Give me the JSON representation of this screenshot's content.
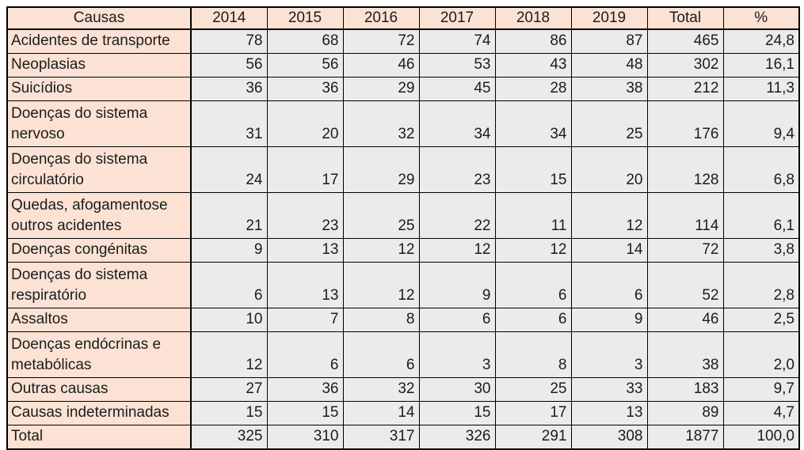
{
  "table": {
    "columns": [
      "Causas",
      "2014",
      "2015",
      "2016",
      "2017",
      "2018",
      "2019",
      "Total",
      "%"
    ],
    "rows": [
      {
        "label": "Acidentes de transporte",
        "values": [
          "78",
          "68",
          "72",
          "74",
          "86",
          "87",
          "465",
          "24,8"
        ]
      },
      {
        "label": "Neoplasias",
        "values": [
          "56",
          "56",
          "46",
          "53",
          "43",
          "48",
          "302",
          "16,1"
        ]
      },
      {
        "label": "Suicídios",
        "values": [
          "36",
          "36",
          "29",
          "45",
          "28",
          "38",
          "212",
          "11,3"
        ]
      },
      {
        "label": "Doenças do sistema\nnervoso",
        "values": [
          "31",
          "20",
          "32",
          "34",
          "34",
          "25",
          "176",
          "9,4"
        ]
      },
      {
        "label": "Doenças do sistema\ncirculatório",
        "values": [
          "24",
          "17",
          "29",
          "23",
          "15",
          "20",
          "128",
          "6,8"
        ]
      },
      {
        "label": "Quedas, afogamentose\noutros acidentes",
        "values": [
          "21",
          "23",
          "25",
          "22",
          "11",
          "12",
          "114",
          "6,1"
        ]
      },
      {
        "label": "Doenças congénitas",
        "values": [
          "9",
          "13",
          "12",
          "12",
          "12",
          "14",
          "72",
          "3,8"
        ]
      },
      {
        "label": "Doenças do sistema\nrespiratório",
        "values": [
          "6",
          "13",
          "12",
          "9",
          "6",
          "6",
          "52",
          "2,8"
        ]
      },
      {
        "label": "Assaltos",
        "values": [
          "10",
          "7",
          "8",
          "6",
          "6",
          "9",
          "46",
          "2,5"
        ]
      },
      {
        "label": "Doenças endócrinas e\nmetabólicas",
        "values": [
          "12",
          "6",
          "6",
          "3",
          "8",
          "3",
          "38",
          "2,0"
        ]
      },
      {
        "label": "Outras causas",
        "values": [
          "27",
          "36",
          "32",
          "30",
          "25",
          "33",
          "183",
          "9,7"
        ]
      },
      {
        "label": "Causas indeterminadas",
        "values": [
          "15",
          "15",
          "14",
          "15",
          "17",
          "13",
          "89",
          "4,7"
        ]
      },
      {
        "label": "Total",
        "values": [
          "325",
          "310",
          "317",
          "326",
          "291",
          "308",
          "1877",
          "100,0"
        ]
      }
    ],
    "colors": {
      "header_bg": "#fbe2d5",
      "label_bg": "#fbe2d5",
      "cell_bg": "#ecebe9",
      "border": "#000000",
      "text": "#1c1c1c",
      "page_bg": "#ffffff"
    }
  }
}
